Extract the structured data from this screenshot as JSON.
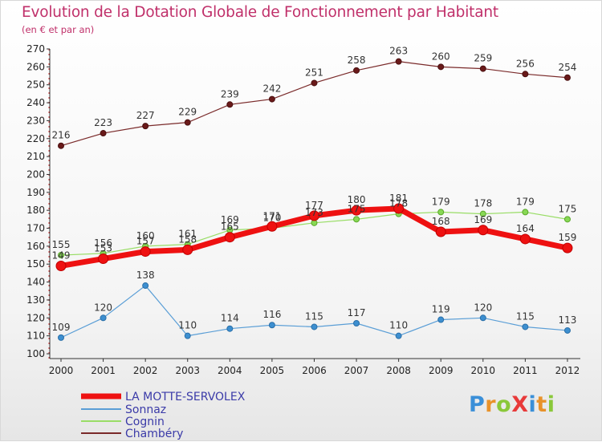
{
  "chart_data": {
    "type": "line",
    "title": "Evolution de la Dotation Globale de Fonctionnement par Habitant",
    "subtitle": "(en € et par an)",
    "xlabel": "",
    "ylabel": "",
    "x": [
      "2000",
      "2001",
      "2002",
      "2003",
      "2004",
      "2005",
      "2006",
      "2007",
      "2008",
      "2009",
      "2010",
      "2011",
      "2012"
    ],
    "ylim": [
      100,
      270
    ],
    "yticks": [
      100,
      110,
      120,
      130,
      140,
      150,
      160,
      170,
      180,
      190,
      200,
      210,
      220,
      230,
      240,
      250,
      260,
      270
    ],
    "grid": false,
    "legend_position": "bottom-left",
    "series": [
      {
        "name": "LA MOTTE-SERVOLEX",
        "color": "#ee1111",
        "values": [
          149,
          153,
          157,
          158,
          165,
          171,
          177,
          180,
          181,
          168,
          169,
          164,
          159
        ]
      },
      {
        "name": "Sonnaz",
        "color": "#5a9ed6",
        "values": [
          109,
          120,
          138,
          110,
          114,
          116,
          115,
          117,
          110,
          119,
          120,
          115,
          113
        ]
      },
      {
        "name": "Cognin",
        "color": "#99dd66",
        "values": [
          155,
          156,
          160,
          161,
          169,
          170,
          173,
          175,
          178,
          179,
          178,
          179,
          175
        ]
      },
      {
        "name": "Chambéry",
        "color": "#7a2a2a",
        "values": [
          216,
          223,
          227,
          229,
          239,
          242,
          251,
          258,
          263,
          260,
          259,
          256,
          254
        ]
      }
    ]
  },
  "logo": {
    "text": "ProXiti"
  }
}
